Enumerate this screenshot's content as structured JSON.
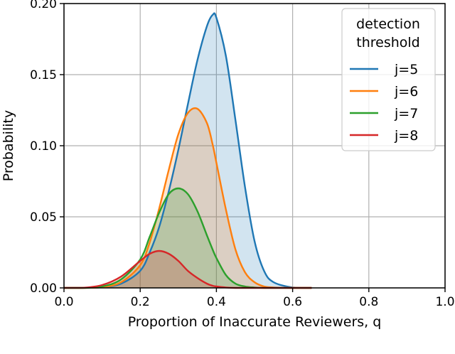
{
  "chart_data": {
    "type": "area",
    "xlabel": "Proportion of Inaccurate Reviewers, q",
    "ylabel": "Probability",
    "xlim": [
      0.0,
      1.0
    ],
    "ylim": [
      0.0,
      0.2
    ],
    "xticks": [
      "0.0",
      "0.2",
      "0.4",
      "0.6",
      "0.8",
      "1.0"
    ],
    "yticks": [
      "0.00",
      "0.05",
      "0.10",
      "0.15",
      "0.20"
    ],
    "grid": true,
    "legend": {
      "title_lines": [
        "detection",
        "threshold"
      ],
      "placement": "top-right"
    },
    "fill_alpha": 0.2,
    "x": [
      0.0,
      0.05,
      0.1,
      0.15,
      0.2,
      0.225,
      0.25,
      0.275,
      0.3,
      0.325,
      0.35,
      0.375,
      0.39,
      0.4,
      0.425,
      0.45,
      0.475,
      0.5,
      0.525,
      0.55,
      0.6,
      0.65
    ],
    "series": [
      {
        "name": "j=5",
        "color": "#1f77b4",
        "values": [
          0.0,
          0.0,
          0.0005,
          0.003,
          0.012,
          0.025,
          0.043,
          0.068,
          0.097,
          0.129,
          0.16,
          0.184,
          0.192,
          0.19,
          0.163,
          0.118,
          0.071,
          0.033,
          0.012,
          0.004,
          0.0003,
          0.0
        ]
      },
      {
        "name": "j=6",
        "color": "#ff7f0e",
        "values": [
          0.0,
          0.0,
          0.0005,
          0.004,
          0.016,
          0.032,
          0.056,
          0.083,
          0.108,
          0.123,
          0.126,
          0.116,
          0.101,
          0.088,
          0.055,
          0.027,
          0.011,
          0.004,
          0.001,
          0.0003,
          0.0,
          0.0
        ]
      },
      {
        "name": "j=7",
        "color": "#2ca02c",
        "values": [
          0.0,
          0.0,
          0.001,
          0.006,
          0.02,
          0.036,
          0.053,
          0.066,
          0.07,
          0.066,
          0.054,
          0.037,
          0.027,
          0.021,
          0.009,
          0.003,
          0.001,
          0.0003,
          0.0,
          0.0,
          0.0,
          0.0
        ]
      },
      {
        "name": "j=8",
        "color": "#d62728",
        "values": [
          0.0,
          0.0001,
          0.002,
          0.008,
          0.019,
          0.024,
          0.026,
          0.024,
          0.019,
          0.012,
          0.007,
          0.003,
          0.0015,
          0.001,
          0.0003,
          0.0,
          0.0,
          0.0,
          0.0,
          0.0,
          0.0,
          0.0
        ]
      }
    ]
  }
}
